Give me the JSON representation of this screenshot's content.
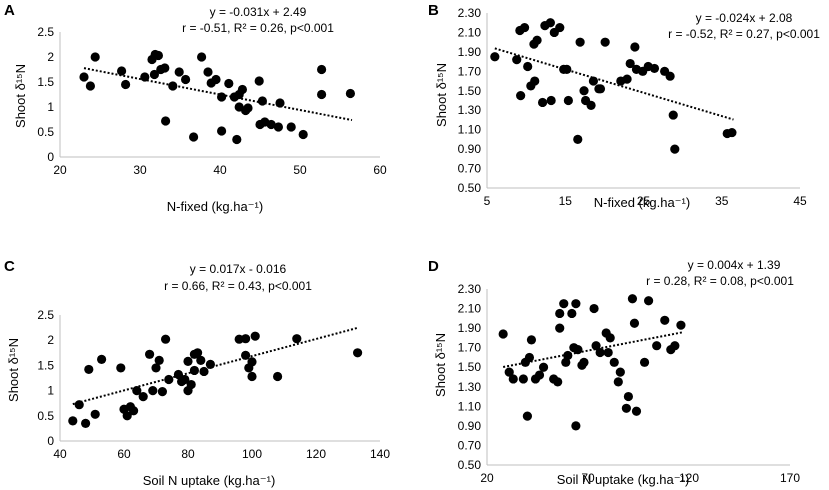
{
  "figure": {
    "panels": [
      {
        "letter": "A",
        "x_label": "N-fixed (kg.ha⁻¹)",
        "y_label": "Shoot δ¹⁵N",
        "equation": "y = -0.031x + 2.49",
        "stats": "r = -0.51, R² = 0.26, p<0.001"
      },
      {
        "letter": "B",
        "x_label": "N-fixed (kg.ha⁻¹)",
        "y_label": "Shoot δ¹⁵N",
        "equation": "y = -0.024x + 2.08",
        "stats": "r = -0.52, R² = 0.27, p<0.001"
      },
      {
        "letter": "C",
        "x_label": "Soil N uptake (kg.ha⁻¹)",
        "y_label": "Shoot δ¹⁵N",
        "equation": "y = 0.017x - 0.016",
        "stats": "r = 0.66, R² = 0.43, p<0.001"
      },
      {
        "letter": "D",
        "x_label": "Soil N uptake (kg.ha⁻¹)",
        "y_label": "Shoot δ¹⁵N",
        "equation": "y = 0.004x + 1.39",
        "stats": "r = 0.28, R² = 0.08, p<0.001"
      }
    ]
  },
  "chart_data": [
    {
      "type": "scatter",
      "panel": "A",
      "xlabel": "N-fixed (kg.ha⁻¹)",
      "ylabel": "Shoot δ¹⁵N",
      "xlim": [
        20,
        60
      ],
      "ylim": [
        0,
        2.5
      ],
      "xticks": [
        "20",
        "30",
        "40",
        "50",
        "60"
      ],
      "yticks": [
        "0",
        "0.5",
        "1",
        "1.5",
        "2",
        "2.5"
      ],
      "xtick_values": [
        20,
        30,
        40,
        50,
        60
      ],
      "ytick_values": [
        0,
        0.5,
        1,
        1.5,
        2,
        2.5
      ],
      "trendline": {
        "slope": -0.031,
        "intercept": 2.49,
        "x_range": [
          23,
          56.5
        ]
      },
      "points": [
        [
          23,
          1.6
        ],
        [
          23.8,
          1.42
        ],
        [
          24.4,
          2.0
        ],
        [
          27.7,
          1.72
        ],
        [
          28.2,
          1.45
        ],
        [
          30.6,
          1.6
        ],
        [
          31.5,
          1.95
        ],
        [
          31.9,
          2.05
        ],
        [
          31.8,
          1.65
        ],
        [
          32.3,
          2.03
        ],
        [
          32.6,
          1.75
        ],
        [
          33.1,
          1.78
        ],
        [
          33.2,
          0.72
        ],
        [
          34.1,
          1.42
        ],
        [
          34.9,
          1.7
        ],
        [
          35.7,
          1.55
        ],
        [
          36.7,
          0.4
        ],
        [
          37.7,
          2.0
        ],
        [
          38.5,
          1.7
        ],
        [
          38.9,
          1.48
        ],
        [
          39.5,
          1.55
        ],
        [
          40.2,
          1.2
        ],
        [
          40.2,
          0.52
        ],
        [
          41.1,
          1.47
        ],
        [
          41.8,
          1.2
        ],
        [
          42.1,
          0.35
        ],
        [
          42.4,
          1.0
        ],
        [
          42.4,
          1.25
        ],
        [
          42.8,
          1.35
        ],
        [
          43.2,
          0.93
        ],
        [
          43.5,
          0.98
        ],
        [
          44.9,
          1.52
        ],
        [
          45.0,
          0.65
        ],
        [
          45.3,
          1.12
        ],
        [
          45.6,
          0.7
        ],
        [
          46.4,
          0.65
        ],
        [
          47.3,
          0.6
        ],
        [
          47.5,
          1.08
        ],
        [
          48.9,
          0.6
        ],
        [
          50.4,
          0.45
        ],
        [
          52.7,
          1.75
        ],
        [
          52.7,
          1.25
        ],
        [
          56.3,
          1.27
        ]
      ]
    },
    {
      "type": "scatter",
      "panel": "B",
      "xlabel": "N-fixed (kg.ha⁻¹)",
      "ylabel": "Shoot δ¹⁵N",
      "xlim": [
        5,
        45
      ],
      "ylim": [
        0.5,
        2.3
      ],
      "xticks": [
        "5",
        "15",
        "25",
        "35",
        "45"
      ],
      "yticks": [
        "0.50",
        "0.70",
        "0.90",
        "1.10",
        "1.30",
        "1.50",
        "1.70",
        "1.90",
        "2.10",
        "2.30"
      ],
      "xtick_values": [
        5,
        15,
        25,
        35,
        45
      ],
      "ytick_values": [
        0.5,
        0.7,
        0.9,
        1.1,
        1.3,
        1.5,
        1.7,
        1.9,
        2.1,
        2.3
      ],
      "trendline": {
        "slope": -0.024,
        "intercept": 2.08,
        "x_range": [
          6,
          36.5
        ]
      },
      "points": [
        [
          6,
          1.85
        ],
        [
          8.8,
          1.82
        ],
        [
          9.2,
          2.12
        ],
        [
          9.3,
          1.45
        ],
        [
          9.8,
          2.15
        ],
        [
          10.2,
          1.75
        ],
        [
          10.6,
          1.55
        ],
        [
          11.0,
          1.98
        ],
        [
          11.1,
          1.6
        ],
        [
          11.4,
          2.02
        ],
        [
          12.1,
          1.38
        ],
        [
          12.4,
          2.17
        ],
        [
          13.1,
          2.2
        ],
        [
          13.2,
          1.4
        ],
        [
          13.6,
          2.1
        ],
        [
          14.3,
          2.15
        ],
        [
          14.8,
          1.72
        ],
        [
          15.4,
          1.4
        ],
        [
          15.2,
          1.72
        ],
        [
          16.6,
          1.0
        ],
        [
          16.9,
          2.0
        ],
        [
          17.4,
          1.5
        ],
        [
          17.6,
          1.4
        ],
        [
          18.3,
          1.35
        ],
        [
          18.6,
          1.6
        ],
        [
          19.3,
          1.52
        ],
        [
          19.5,
          1.52
        ],
        [
          20.1,
          2.0
        ],
        [
          22.1,
          1.6
        ],
        [
          22.9,
          1.62
        ],
        [
          23.3,
          1.78
        ],
        [
          23.9,
          1.95
        ],
        [
          24.1,
          1.72
        ],
        [
          24.9,
          1.7
        ],
        [
          25.6,
          1.75
        ],
        [
          26.4,
          1.73
        ],
        [
          27.7,
          1.7
        ],
        [
          28.4,
          1.65
        ],
        [
          28.8,
          1.25
        ],
        [
          29.0,
          0.9
        ],
        [
          35.7,
          1.06
        ],
        [
          36.3,
          1.07
        ]
      ]
    },
    {
      "type": "scatter",
      "panel": "C",
      "xlabel": "Soil N uptake (kg.ha⁻¹)",
      "ylabel": "Shoot δ¹⁵N",
      "xlim": [
        40,
        140
      ],
      "ylim": [
        0,
        2.5
      ],
      "xticks": [
        "40",
        "60",
        "80",
        "100",
        "120",
        "140"
      ],
      "yticks": [
        "0",
        "0.5",
        "1",
        "1.5",
        "2",
        "2.5"
      ],
      "xtick_values": [
        40,
        60,
        80,
        100,
        120,
        140
      ],
      "ytick_values": [
        0,
        0.5,
        1,
        1.5,
        2,
        2.5
      ],
      "trendline": {
        "slope": 0.017,
        "intercept": -0.016,
        "x_range": [
          44,
          133
        ]
      },
      "points": [
        [
          44,
          0.4
        ],
        [
          46,
          0.72
        ],
        [
          48,
          0.35
        ],
        [
          49,
          1.42
        ],
        [
          51,
          0.53
        ],
        [
          53,
          1.62
        ],
        [
          59,
          1.45
        ],
        [
          60,
          0.63
        ],
        [
          61,
          0.5
        ],
        [
          62,
          0.68
        ],
        [
          63,
          0.6
        ],
        [
          64,
          1.0
        ],
        [
          66,
          0.88
        ],
        [
          68,
          1.72
        ],
        [
          69,
          1.0
        ],
        [
          70,
          1.45
        ],
        [
          71,
          1.6
        ],
        [
          72,
          0.98
        ],
        [
          73,
          2.02
        ],
        [
          74,
          1.22
        ],
        [
          77,
          1.32
        ],
        [
          78,
          1.18
        ],
        [
          79,
          1.22
        ],
        [
          80,
          1.0
        ],
        [
          80,
          1.58
        ],
        [
          81,
          1.12
        ],
        [
          82,
          1.4
        ],
        [
          82,
          1.72
        ],
        [
          83,
          1.75
        ],
        [
          84,
          1.6
        ],
        [
          85,
          1.38
        ],
        [
          87,
          1.52
        ],
        [
          96,
          2.02
        ],
        [
          98,
          2.03
        ],
        [
          98,
          1.7
        ],
        [
          99,
          1.45
        ],
        [
          100,
          1.28
        ],
        [
          100,
          1.57
        ],
        [
          101,
          2.08
        ],
        [
          108,
          1.28
        ],
        [
          114,
          2.03
        ],
        [
          133,
          1.75
        ]
      ]
    },
    {
      "type": "scatter",
      "panel": "D",
      "xlabel": "Soil N uptake (kg.ha⁻¹)",
      "ylabel": "Shoot δ¹⁵N",
      "xlim": [
        20,
        170
      ],
      "ylim": [
        0.5,
        2.3
      ],
      "xticks": [
        "20",
        "70",
        "120",
        "170"
      ],
      "yticks": [
        "0.50",
        "0.70",
        "0.90",
        "1.10",
        "1.30",
        "1.50",
        "1.70",
        "1.90",
        "2.10",
        "2.30"
      ],
      "xtick_values": [
        20,
        70,
        120,
        170
      ],
      "ytick_values": [
        0.5,
        0.7,
        0.9,
        1.1,
        1.3,
        1.5,
        1.7,
        1.9,
        2.1,
        2.3
      ],
      "trendline": {
        "slope": 0.004,
        "intercept": 1.39,
        "x_range": [
          28,
          117
        ]
      },
      "points": [
        [
          28,
          1.84
        ],
        [
          31,
          1.45
        ],
        [
          33,
          1.38
        ],
        [
          38,
          1.38
        ],
        [
          39,
          1.55
        ],
        [
          40,
          1.0
        ],
        [
          41,
          1.6
        ],
        [
          42,
          1.78
        ],
        [
          44,
          1.38
        ],
        [
          46,
          1.42
        ],
        [
          48,
          1.5
        ],
        [
          53,
          1.38
        ],
        [
          55,
          1.35
        ],
        [
          56,
          2.05
        ],
        [
          56,
          1.9
        ],
        [
          58,
          2.15
        ],
        [
          59,
          1.55
        ],
        [
          60,
          1.62
        ],
        [
          62,
          2.05
        ],
        [
          63,
          1.7
        ],
        [
          64,
          0.9
        ],
        [
          64,
          2.15
        ],
        [
          65,
          1.68
        ],
        [
          67,
          1.52
        ],
        [
          68,
          1.55
        ],
        [
          73,
          2.1
        ],
        [
          74,
          1.72
        ],
        [
          76,
          1.65
        ],
        [
          79,
          1.85
        ],
        [
          80,
          1.65
        ],
        [
          81,
          1.8
        ],
        [
          83,
          1.55
        ],
        [
          85,
          1.35
        ],
        [
          86,
          1.45
        ],
        [
          89,
          1.08
        ],
        [
          90,
          1.2
        ],
        [
          92,
          2.2
        ],
        [
          93,
          1.95
        ],
        [
          94,
          1.05
        ],
        [
          98,
          1.55
        ],
        [
          100,
          2.18
        ],
        [
          104,
          1.72
        ],
        [
          108,
          1.98
        ],
        [
          111,
          1.68
        ],
        [
          113,
          1.72
        ],
        [
          116,
          1.93
        ]
      ]
    }
  ]
}
